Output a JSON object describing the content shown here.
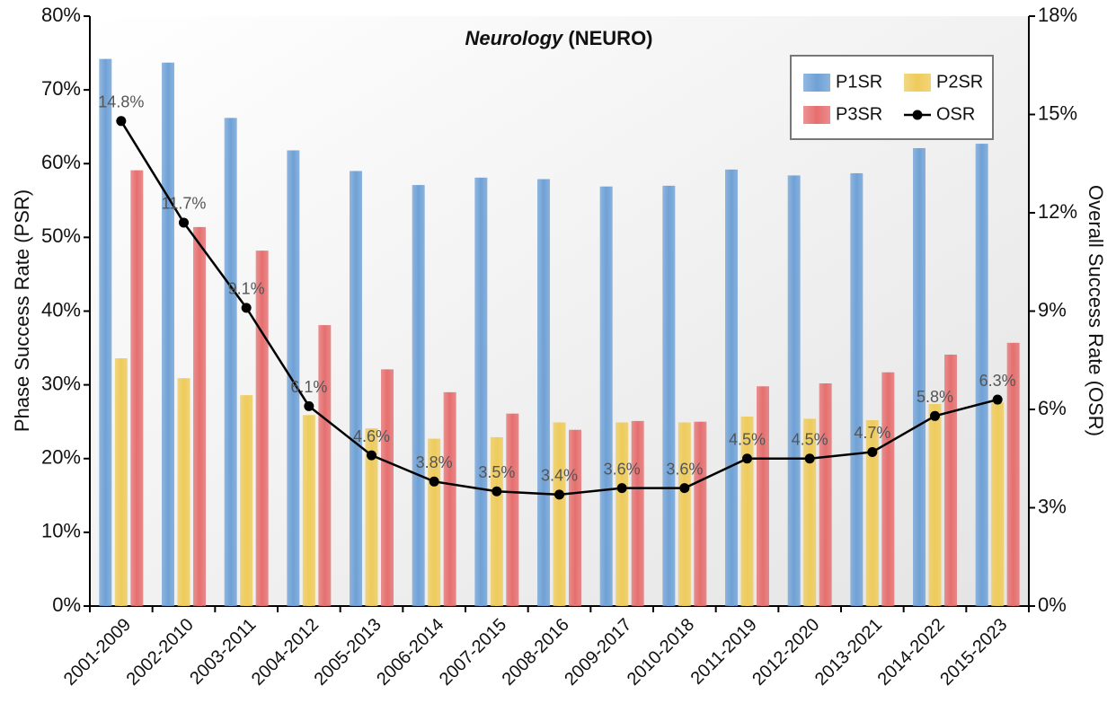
{
  "chart_data": {
    "type": "bar",
    "title": [
      "Neurology",
      "(NEURO)"
    ],
    "ylabel": "Phase Success Rate (PSR)",
    "y2label": "Overall Success Rate (OSR)",
    "categories": [
      "2001-2009",
      "2002-2010",
      "2003-2011",
      "2004-2012",
      "2005-2013",
      "2006-2014",
      "2007-2015",
      "2008-2016",
      "2009-2017",
      "2010-2018",
      "2011-2019",
      "2012-2020",
      "2013-2021",
      "2014-2022",
      "2015-2023"
    ],
    "series": [
      {
        "name": "P1SR",
        "type": "bar",
        "color": "#6fa1d6",
        "values": [
          74.2,
          73.7,
          66.2,
          61.8,
          59.0,
          57.1,
          58.1,
          57.9,
          56.9,
          57.0,
          59.2,
          58.4,
          58.7,
          62.1,
          62.7
        ]
      },
      {
        "name": "P2SR",
        "type": "bar",
        "color": "#eecb5a",
        "values": [
          33.6,
          30.9,
          28.6,
          25.9,
          24.1,
          22.7,
          22.9,
          24.9,
          24.9,
          24.9,
          25.7,
          25.4,
          25.2,
          27.4,
          27.6
        ]
      },
      {
        "name": "P3SR",
        "type": "bar",
        "color": "#e66f6f",
        "values": [
          59.1,
          51.4,
          48.2,
          38.1,
          32.1,
          29.0,
          26.1,
          23.9,
          25.1,
          25.0,
          29.8,
          30.2,
          31.7,
          34.1,
          35.7
        ]
      },
      {
        "name": "OSR",
        "type": "line",
        "axis": "y2",
        "color": "#000000",
        "values": [
          14.8,
          11.7,
          9.1,
          6.1,
          4.6,
          3.8,
          3.5,
          3.4,
          3.6,
          3.6,
          4.5,
          4.5,
          4.7,
          5.8,
          6.3
        ],
        "value_labels": [
          "14.8%",
          "11.7%",
          "9.1%",
          "6.1%",
          "4.6%",
          "3.8%",
          "3.5%",
          "3.4%",
          "3.6%",
          "3.6%",
          "4.5%",
          "4.5%",
          "4.7%",
          "5.8%",
          "6.3%"
        ]
      }
    ],
    "ylim": [
      0,
      80
    ],
    "yticks": [
      {
        "value": 0,
        "label": "0%"
      },
      {
        "value": 10,
        "label": "10%"
      },
      {
        "value": 20,
        "label": "20%"
      },
      {
        "value": 30,
        "label": "30%"
      },
      {
        "value": 40,
        "label": "40%"
      },
      {
        "value": 50,
        "label": "50%"
      },
      {
        "value": 60,
        "label": "60%"
      },
      {
        "value": 70,
        "label": "70%"
      },
      {
        "value": 80,
        "label": "80%"
      }
    ],
    "y2lim": [
      0,
      18
    ],
    "y2ticks": [
      {
        "value": 0,
        "label": "0%"
      },
      {
        "value": 3,
        "label": "3%"
      },
      {
        "value": 6,
        "label": "6%"
      },
      {
        "value": 9,
        "label": "9%"
      },
      {
        "value": 12,
        "label": "12%"
      },
      {
        "value": 15,
        "label": "15%"
      },
      {
        "value": 18,
        "label": "18%"
      }
    ],
    "legend": "top-right"
  }
}
